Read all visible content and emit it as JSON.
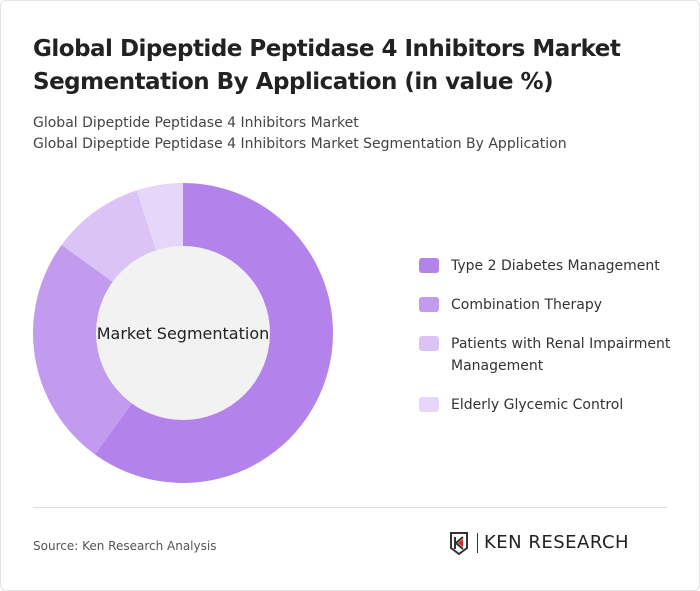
{
  "title": "Global Dipeptide Peptidase 4 Inhibitors Market Segmentation By Application (in value %)",
  "subtitle1": "Global Dipeptide Peptidase 4 Inhibitors Market",
  "subtitle2": "Global Dipeptide Peptidase 4 Inhibitors Market Segmentation By Application",
  "chart_data": {
    "type": "pie",
    "variant": "donut",
    "center_label": "Market Segmentation",
    "categories": [
      "Type 2 Diabetes Management",
      "Combination Therapy",
      "Patients with Renal Impairment Management",
      "Elderly Glycemic Control"
    ],
    "values": [
      60,
      25,
      10,
      5
    ],
    "colors": [
      "#b383eb",
      "#c29bef",
      "#dbc3f6",
      "#e6d6f9"
    ],
    "legend_position": "right"
  },
  "source": "Source: Ken Research Analysis",
  "logo_text": "KEN RESEARCH"
}
